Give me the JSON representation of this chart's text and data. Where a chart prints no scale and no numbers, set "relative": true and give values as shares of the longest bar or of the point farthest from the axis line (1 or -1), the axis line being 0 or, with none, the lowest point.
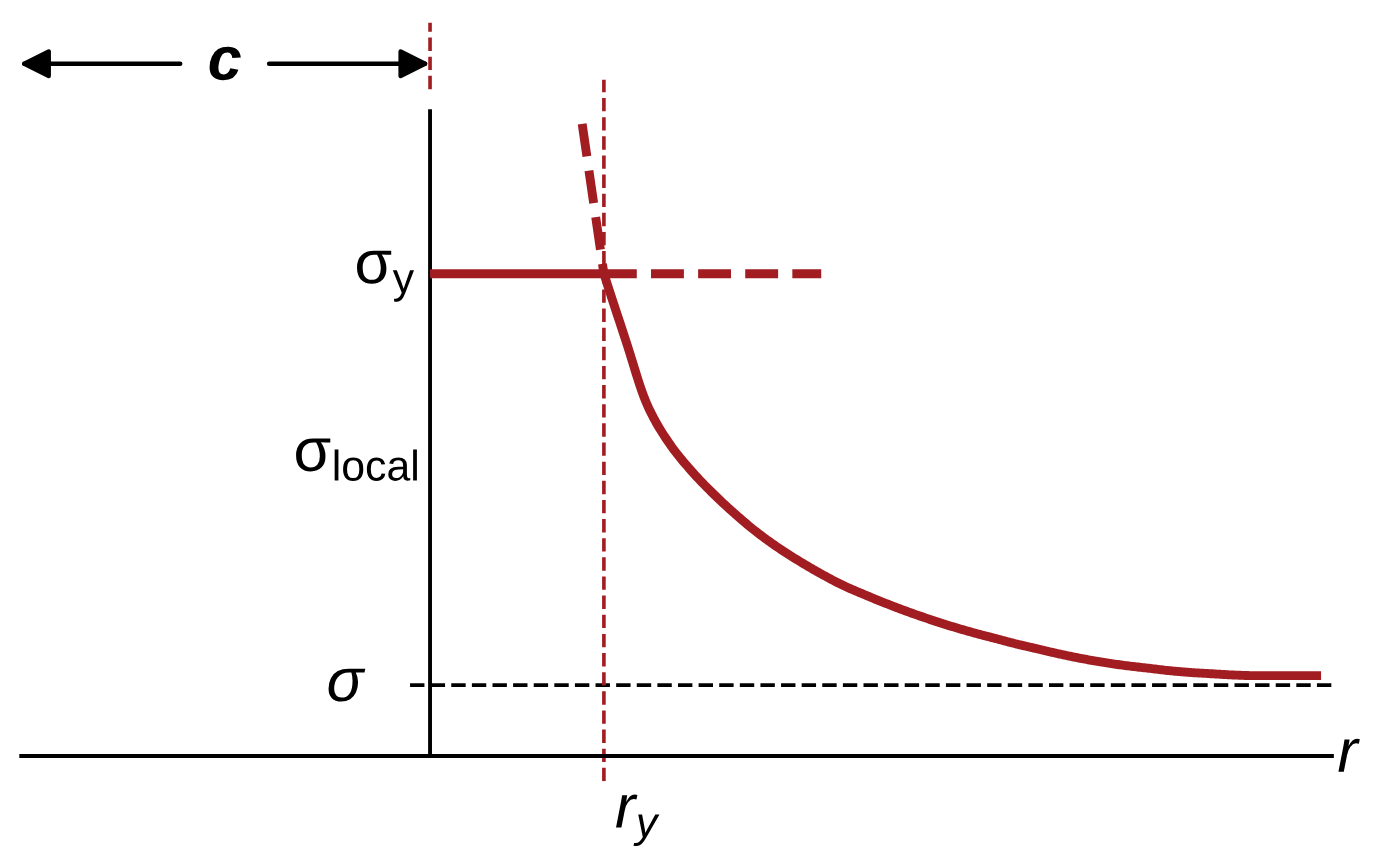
{
  "chart_data": {
    "type": "line",
    "relative": true,
    "xlabel": "r",
    "ylabel": "σ$_{local}$",
    "categories": [
      null,
      null,
      null,
      null,
      null,
      null,
      null,
      null,
      null,
      null,
      null,
      null,
      null,
      null,
      null,
      null,
      null,
      null,
      null,
      null,
      null,
      null,
      null,
      null,
      null,
      null,
      null,
      null,
      null,
      null,
      null,
      null,
      null,
      null,
      null,
      null,
      null,
      null,
      null,
      null,
      null,
      null
    ],
    "series": [
      {
        "color": "#a11d21",
        "line_style": "solid",
        "values": [
          0.763,
          0.763,
          0.763,
          0.763,
          0.763,
          0.763,
          0.763,
          0.763,
          0.763,
          null,
          null,
          null,
          null,
          null,
          null,
          null,
          null,
          null,
          null,
          null,
          null,
          null,
          null,
          null,
          null,
          null,
          null,
          null,
          null,
          null,
          null,
          null,
          null,
          null,
          null,
          null,
          null,
          null,
          null,
          null,
          null,
          null
        ]
      },
      {
        "color": "#a11d21",
        "line_style": "solid",
        "values": [
          null,
          null,
          null,
          null,
          null,
          null,
          null,
          null,
          0.763,
          0.658,
          0.555,
          0.495,
          0.452,
          0.416,
          0.384,
          0.355,
          0.33,
          0.308,
          0.288,
          0.27,
          0.255,
          0.241,
          0.228,
          0.216,
          0.205,
          0.195,
          0.186,
          0.177,
          0.169,
          0.161,
          0.154,
          0.148,
          0.143,
          0.139,
          0.135,
          0.132,
          0.13,
          0.128,
          0.127,
          0.127,
          0.127,
          0.127
        ]
      },
      {
        "color": "#a11d21",
        "line_style": "dashed",
        "values": [
          null,
          null,
          null,
          null,
          null,
          null,
          null,
          1.0,
          0.763,
          null,
          null,
          null,
          null,
          null,
          null,
          null,
          null,
          null,
          null,
          null,
          null,
          null,
          null,
          null,
          null,
          null,
          null,
          null,
          null,
          null,
          null,
          null,
          null,
          null,
          null,
          null,
          null,
          null,
          null,
          null,
          null,
          null
        ]
      },
      {
        "color": "#a11d21",
        "line_style": "dashed",
        "values": [
          null,
          null,
          null,
          null,
          null,
          null,
          null,
          null,
          0.763,
          0.763,
          0.763,
          0.763,
          0.763,
          0.763,
          0.763,
          0.763,
          0.763,
          0.763,
          0.763,
          null,
          null,
          null,
          null,
          null,
          null,
          null,
          null,
          null,
          null,
          null,
          null,
          null,
          null,
          null,
          null,
          null,
          null,
          null,
          null,
          null,
          null,
          null
        ]
      }
    ],
    "ref_lines": [
      {
        "axis": "y",
        "value": 0.112,
        "label": "σ",
        "color": "#000000",
        "line_style": "dashed"
      }
    ],
    "annotations": [
      "c",
      "σ$_{y}$",
      "r$_{y}$"
    ]
  }
}
